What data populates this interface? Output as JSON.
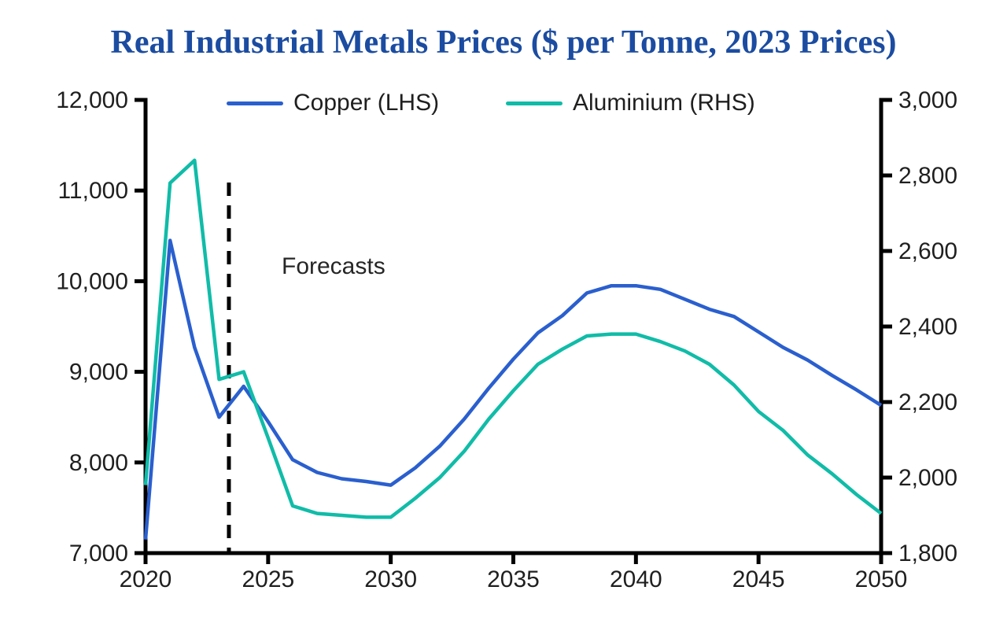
{
  "colors": {
    "title": "#1B4CA1",
    "copper": "#2A5FCE",
    "aluminium": "#10BCA8",
    "axis": "#000000",
    "tick_text": "#1f1f1f",
    "forecast_line": "#000000"
  },
  "chart_data": {
    "type": "line",
    "title": "Real Industrial Metals Prices ($ per Tonne, 2023 Prices)",
    "forecast_label": "Forecasts",
    "legend_position": "top-inside",
    "grid": false,
    "x_label": "",
    "x_range": [
      2020,
      2050
    ],
    "x_tick_values": [
      2020,
      2025,
      2030,
      2035,
      2040,
      2045,
      2050
    ],
    "x_tick_labels": [
      "2020",
      "2025",
      "2030",
      "2035",
      "2040",
      "2045",
      "2050"
    ],
    "left_axis": {
      "range": [
        7000,
        12000
      ],
      "tick_values": [
        7000,
        8000,
        9000,
        10000,
        11000,
        12000
      ],
      "tick_labels": [
        "7,000",
        "8,000",
        "9,000",
        "10,000",
        "11,000",
        "12,000"
      ]
    },
    "right_axis": {
      "range": [
        1800,
        3000
      ],
      "tick_values": [
        1800,
        2000,
        2200,
        2400,
        2600,
        2800,
        3000
      ],
      "tick_labels": [
        "1,800",
        "2,000",
        "2,200",
        "2,400",
        "2,600",
        "2,800",
        "3,000"
      ]
    },
    "forecast_line_x": 2023.4,
    "x": [
      2020,
      2021,
      2022,
      2023,
      2024,
      2025,
      2026,
      2027,
      2028,
      2029,
      2030,
      2031,
      2032,
      2033,
      2034,
      2035,
      2036,
      2037,
      2038,
      2039,
      2040,
      2041,
      2042,
      2043,
      2044,
      2045,
      2046,
      2047,
      2048,
      2049,
      2050
    ],
    "series": [
      {
        "name": "Copper (LHS)",
        "axis": "left",
        "color": "#2A5FCE",
        "values": [
          7150,
          10450,
          9270,
          8500,
          8840,
          8450,
          8030,
          7890,
          7820,
          7790,
          7750,
          7940,
          8180,
          8480,
          8820,
          9140,
          9430,
          9620,
          9870,
          9950,
          9950,
          9910,
          9800,
          9690,
          9610,
          9440,
          9270,
          9130,
          8960,
          8800,
          8630
        ]
      },
      {
        "name": "Aluminium (RHS)",
        "axis": "right",
        "color": "#10BCA8",
        "values": [
          1980,
          2780,
          2840,
          2260,
          2280,
          2105,
          1925,
          1905,
          1900,
          1895,
          1895,
          1945,
          2000,
          2070,
          2155,
          2230,
          2300,
          2340,
          2375,
          2380,
          2380,
          2360,
          2335,
          2300,
          2245,
          2175,
          2125,
          2060,
          2010,
          1955,
          1905
        ]
      }
    ]
  }
}
